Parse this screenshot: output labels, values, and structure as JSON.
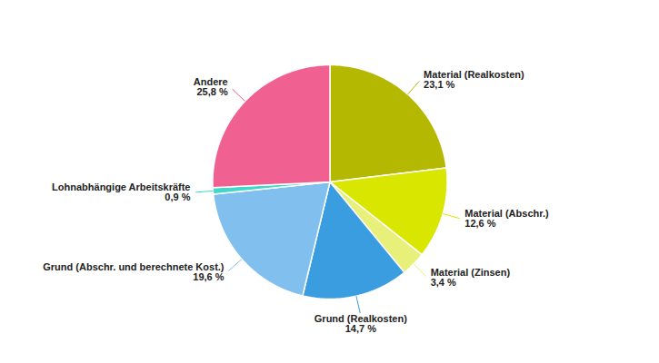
{
  "chart_data": {
    "type": "pie",
    "categories": [
      "Material (Realkosten)",
      "Material (Abschr.)",
      "Material (Zinsen)",
      "Grund (Realkosten)",
      "Grund (Abschr. und berechnete Kost.)",
      "Lohnabhängige Arbeitskräfte",
      "Andere"
    ],
    "values": [
      23.1,
      12.6,
      3.4,
      14.7,
      19.6,
      0.9,
      25.8
    ],
    "value_labels": [
      "23,1 %",
      "12,6 %",
      "3,4 %",
      "14,7 %",
      "19,6 %",
      "0,9 %",
      "25,8 %"
    ],
    "colors": [
      "#b5b800",
      "#d8e600",
      "#e8f07a",
      "#3a9de0",
      "#80bfee",
      "#40d8cc",
      "#f06090"
    ],
    "data_labels": true
  }
}
